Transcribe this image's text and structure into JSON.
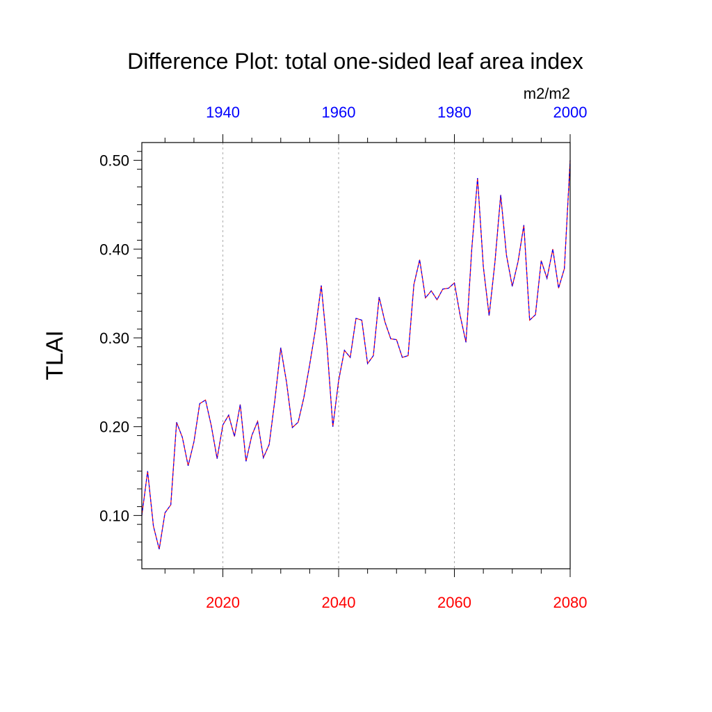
{
  "chart_data": {
    "type": "line",
    "title": "Difference Plot: total one-sided leaf area index",
    "units": "m2/m2",
    "ylabel": "TLAI",
    "xlabel": "",
    "xlim": [
      2006,
      2080
    ],
    "ylim": [
      0.04,
      0.52
    ],
    "y_ticks": [
      0.1,
      0.2,
      0.3,
      0.4,
      0.5
    ],
    "y_tick_labels": [
      "0.10",
      "0.20",
      "0.30",
      "0.40",
      "0.50"
    ],
    "bottom_axis": {
      "ticks": [
        2020,
        2040,
        2060,
        2080
      ],
      "labels": [
        "2020",
        "2040",
        "2060",
        "2080"
      ],
      "color": "#ff0000"
    },
    "top_axis": {
      "ticks": [
        2020,
        2040,
        2060,
        2080
      ],
      "labels": [
        "1940",
        "1960",
        "1980",
        "2000"
      ],
      "color": "#0000ff"
    },
    "grid": "vertical dashed at bottom axis major ticks",
    "series": [
      {
        "line_color": "#ff0000",
        "dash_color": "#0000ff",
        "x": [
          2006,
          2007,
          2008,
          2009,
          2010,
          2011,
          2012,
          2013,
          2014,
          2015,
          2016,
          2017,
          2018,
          2019,
          2020,
          2021,
          2022,
          2023,
          2024,
          2025,
          2026,
          2027,
          2028,
          2029,
          2030,
          2031,
          2032,
          2033,
          2034,
          2035,
          2036,
          2037,
          2038,
          2039,
          2040,
          2041,
          2042,
          2043,
          2044,
          2045,
          2046,
          2047,
          2048,
          2049,
          2050,
          2051,
          2052,
          2053,
          2054,
          2055,
          2056,
          2057,
          2058,
          2059,
          2060,
          2061,
          2062,
          2063,
          2064,
          2065,
          2066,
          2067,
          2068,
          2069,
          2070,
          2071,
          2072,
          2073,
          2074,
          2075,
          2076,
          2077,
          2078,
          2079,
          2080
        ],
        "values": [
          0.1,
          0.15,
          0.088,
          0.062,
          0.103,
          0.112,
          0.205,
          0.188,
          0.156,
          0.183,
          0.226,
          0.23,
          0.201,
          0.164,
          0.202,
          0.213,
          0.189,
          0.225,
          0.161,
          0.19,
          0.206,
          0.165,
          0.18,
          0.231,
          0.289,
          0.25,
          0.199,
          0.205,
          0.233,
          0.27,
          0.31,
          0.359,
          0.29,
          0.2,
          0.252,
          0.286,
          0.278,
          0.322,
          0.32,
          0.271,
          0.28,
          0.346,
          0.318,
          0.299,
          0.298,
          0.278,
          0.28,
          0.36,
          0.388,
          0.345,
          0.353,
          0.343,
          0.355,
          0.356,
          0.362,
          0.325,
          0.295,
          0.4,
          0.48,
          0.38,
          0.325,
          0.385,
          0.461,
          0.393,
          0.358,
          0.386,
          0.427,
          0.32,
          0.326,
          0.387,
          0.367,
          0.4,
          0.356,
          0.378,
          0.5
        ]
      }
    ]
  }
}
